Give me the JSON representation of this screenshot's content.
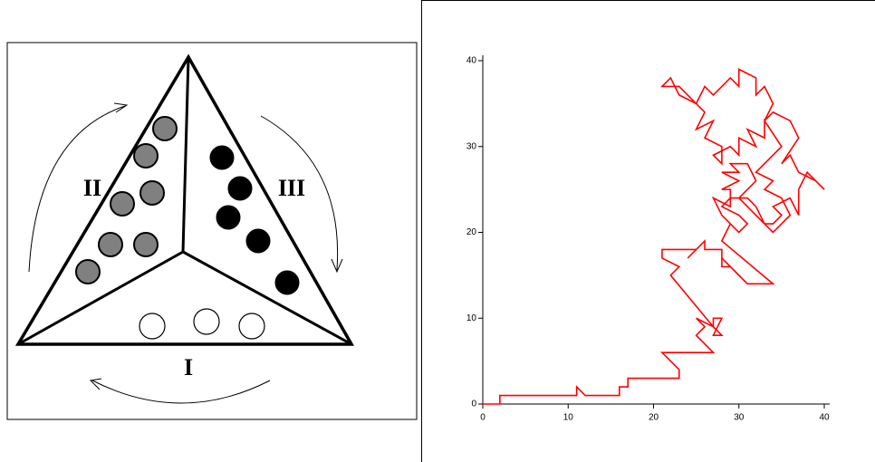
{
  "diagram": {
    "labels": [
      "II",
      "III",
      "I"
    ]
  },
  "chart_data": {
    "type": "line",
    "x": [
      0,
      2,
      2,
      11,
      11,
      12,
      16,
      16,
      17,
      17,
      23,
      23,
      21,
      27,
      25,
      26,
      25,
      27,
      27,
      28,
      27,
      28,
      27,
      22,
      23,
      21,
      21,
      25,
      24,
      26,
      26,
      28,
      28,
      29,
      28,
      30,
      31,
      34,
      28,
      29,
      28,
      27,
      29,
      29,
      28,
      30,
      28,
      30,
      29,
      31,
      32,
      30,
      31,
      33,
      34,
      35,
      34,
      36,
      37,
      37,
      38,
      40,
      39,
      37,
      36,
      35,
      37,
      36,
      34,
      33,
      34,
      33,
      32,
      32,
      30,
      30,
      29,
      27,
      26,
      25,
      23,
      22,
      21,
      23,
      24,
      26,
      25,
      27,
      26,
      28,
      28,
      27,
      29,
      30,
      30,
      32,
      31,
      33,
      33,
      35,
      34,
      32,
      34,
      33,
      35,
      36,
      34,
      33,
      32,
      31,
      29,
      28,
      30,
      31,
      30,
      29
    ],
    "series": [
      {
        "color": "#ff0000",
        "values": [
          0,
          0,
          1,
          1,
          2,
          1,
          1,
          2,
          2,
          3,
          3,
          4,
          6,
          6,
          8,
          9,
          10,
          9,
          10,
          10,
          8,
          8,
          9,
          15,
          16,
          17,
          18,
          18,
          17,
          19,
          18,
          18,
          16,
          16,
          17,
          15,
          14,
          14,
          19,
          21,
          22,
          24,
          23,
          25,
          25,
          26,
          27,
          27,
          28,
          28,
          26,
          24,
          23,
          21,
          21,
          22,
          23,
          24,
          22,
          25,
          27,
          25,
          26,
          27,
          29,
          28,
          31,
          33,
          34,
          33,
          35,
          37,
          36,
          38,
          39,
          37,
          38,
          36,
          37,
          35,
          36,
          38,
          37,
          37,
          36,
          34,
          32,
          33,
          31,
          30,
          28,
          29,
          30,
          29,
          31,
          30,
          32,
          31,
          33,
          30,
          29,
          27,
          26,
          25,
          24,
          22,
          20,
          21,
          23,
          24,
          24,
          23,
          22,
          21,
          20,
          21
        ]
      }
    ],
    "xlim": [
      0,
      40
    ],
    "ylim": [
      0,
      40
    ],
    "xticks": [
      0,
      10,
      20,
      30,
      40
    ],
    "yticks": [
      0,
      10,
      20,
      30,
      40
    ]
  }
}
